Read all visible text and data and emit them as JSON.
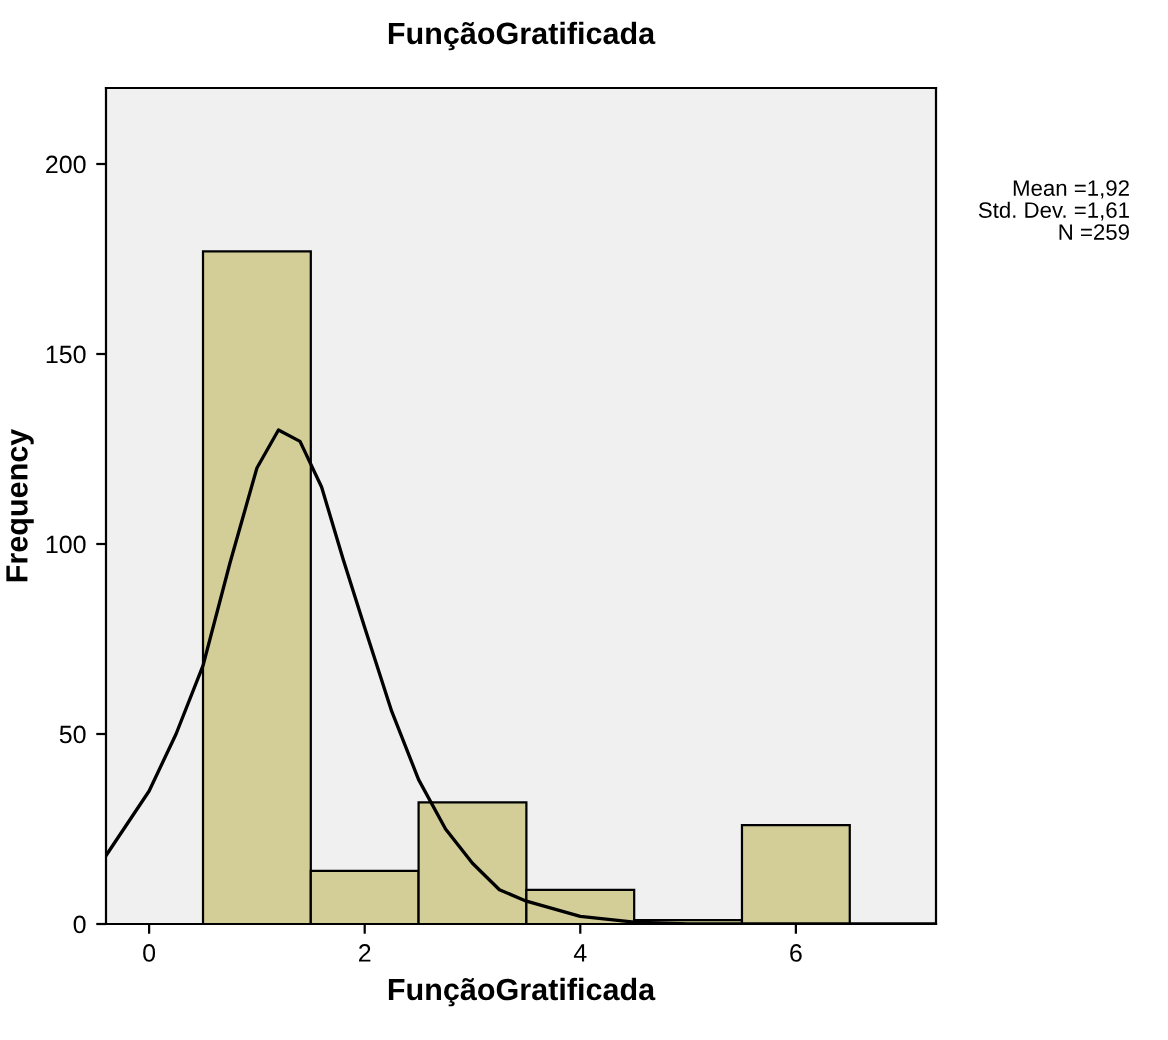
{
  "chart_data": {
    "type": "histogram",
    "title": "FunçãoGratificada",
    "xlabel": "FunçãoGratificada",
    "ylabel": "Frequency",
    "bins": [
      0.5,
      1.5,
      2.5,
      3.5,
      4.5,
      5.5,
      6.5
    ],
    "values": [
      177,
      14,
      32,
      9,
      1,
      26
    ],
    "color": "#d3ce97",
    "series": [
      {
        "type": "line",
        "color": "#000000",
        "x": [
          -0.4,
          0,
          0.25,
          0.5,
          0.75,
          1.0,
          1.2,
          1.4,
          1.6,
          1.8,
          2.0,
          2.25,
          2.5,
          2.75,
          3.0,
          3.25,
          3.5,
          4.0,
          4.5,
          5.0,
          7.3
        ],
        "values": [
          18,
          35,
          50,
          68,
          95,
          120,
          130,
          127,
          115,
          96,
          78,
          56,
          38,
          25,
          16,
          9,
          6,
          2,
          0.5,
          0,
          0
        ]
      }
    ],
    "xlim": [
      -0.4,
      7.3
    ],
    "ylim": [
      0,
      220
    ],
    "xticks": [
      0,
      2,
      4,
      6
    ],
    "yticks": [
      0,
      50,
      100,
      150,
      200
    ],
    "grid": false,
    "legend": false,
    "annotations": [
      "Mean =1,92",
      "Std. Dev. =1,61",
      "N =259"
    ]
  }
}
